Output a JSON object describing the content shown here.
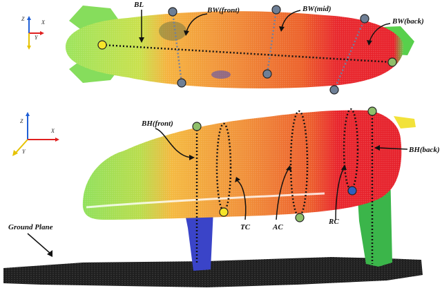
{
  "labels": {
    "bl": "BL",
    "bw_front": "BW(front)",
    "bw_mid": "BW(mid)",
    "bw_back": "BW(back)",
    "bh_front": "BH(front)",
    "bh_back": "BH(back)",
    "tc": "TC",
    "ac": "AC",
    "rc": "RC",
    "ground_plane": "Ground Plane"
  },
  "axes_top": {
    "z": "Z",
    "x": "X",
    "y": "Y"
  },
  "axes_side": {
    "z": "Z",
    "x": "X",
    "y": "Y"
  },
  "colors": {
    "axis_z": "#1f5fd6",
    "axis_x": "#e02020",
    "axis_y": "#e6c200",
    "marker_grey": "#6e7f96",
    "marker_green": "#8fbf6a",
    "marker_yellow": "#f5e52a",
    "marker_blue": "#2f5fbf",
    "body_green": "#7ed957",
    "body_orange": "#f2a23c",
    "body_orange_dark": "#ea6a2a",
    "body_red": "#e8202a",
    "legs_blue": "#3a44c8",
    "legs_green": "#3bb54a",
    "ground": "#111111"
  }
}
